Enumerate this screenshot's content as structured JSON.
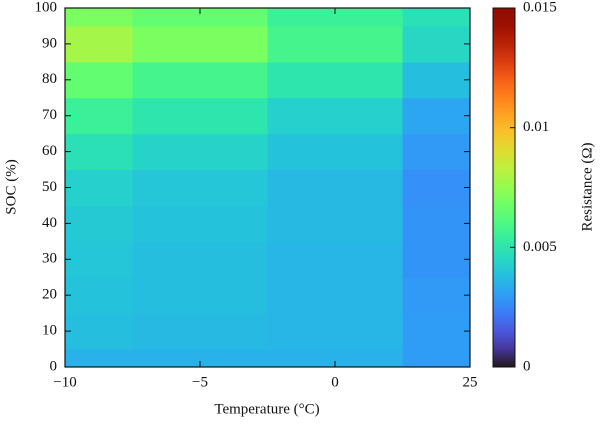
{
  "chart_data": {
    "type": "heatmap",
    "colormap": "turbo",
    "x_label": "Temperature (°C)",
    "y_label": "SOC (%)",
    "colorbar_label": "Resistance (Ω)",
    "categories": [
      "−10",
      "−5",
      "0",
      "25"
    ],
    "y": [
      0,
      10,
      20,
      30,
      40,
      50,
      60,
      70,
      80,
      90,
      100
    ],
    "ylim": [
      0,
      100
    ],
    "yticks": [
      0,
      10,
      20,
      30,
      40,
      50,
      60,
      70,
      80,
      90,
      100
    ],
    "values": [
      [
        0.0035,
        0.0035,
        0.0035,
        0.003
      ],
      [
        0.0038,
        0.0037,
        0.0036,
        0.003
      ],
      [
        0.0039,
        0.0038,
        0.0036,
        0.0029
      ],
      [
        0.004,
        0.0038,
        0.0036,
        0.0028
      ],
      [
        0.0041,
        0.0039,
        0.0037,
        0.0028
      ],
      [
        0.0043,
        0.004,
        0.0037,
        0.0027
      ],
      [
        0.0048,
        0.0044,
        0.0039,
        0.0029
      ],
      [
        0.0055,
        0.005,
        0.0043,
        0.0032
      ],
      [
        0.0065,
        0.0058,
        0.005,
        0.0038
      ],
      [
        0.0078,
        0.007,
        0.0058,
        0.0045
      ],
      [
        0.007,
        0.0065,
        0.0055,
        0.0048
      ]
    ],
    "clim": [
      0,
      0.015
    ],
    "cticks": [
      0,
      0.005,
      0.01,
      0.015
    ]
  }
}
